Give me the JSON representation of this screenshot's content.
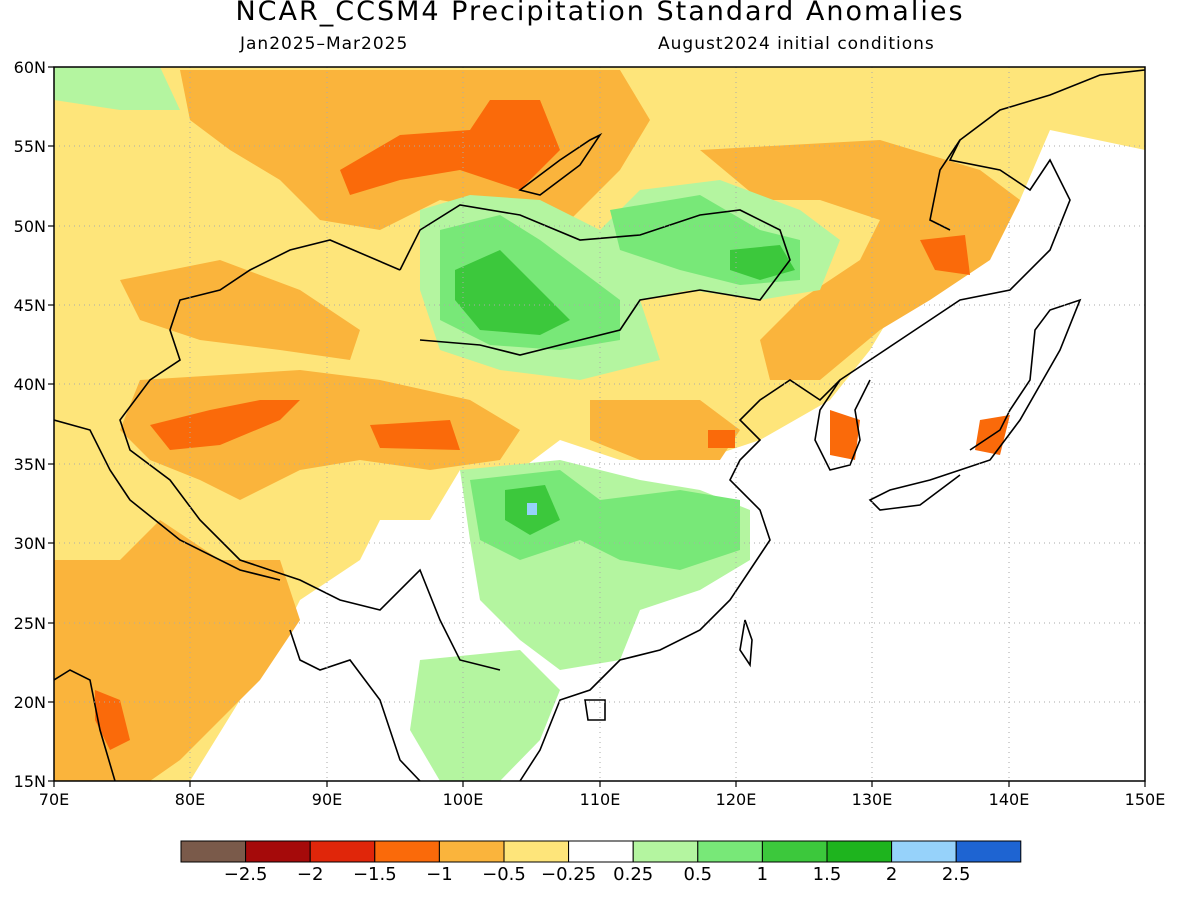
{
  "title": "NCAR_CCSM4 Precipitation Standard Anomalies",
  "period": "Jan2025–Mar2025",
  "initial_conditions": "August2024 initial conditions",
  "lat_labels": [
    "60N",
    "55N",
    "50N",
    "45N",
    "40N",
    "35N",
    "30N",
    "25N",
    "20N",
    "15N"
  ],
  "lon_labels": [
    "70E",
    "80E",
    "90E",
    "100E",
    "110E",
    "120E",
    "130E",
    "140E",
    "150E"
  ],
  "colorbar": {
    "colors": [
      "#7a5a4a",
      "#a50a0a",
      "#e0260a",
      "#fa6a0a",
      "#fab43c",
      "#fee57a",
      "#ffffff",
      "#b4f5a0",
      "#78e878",
      "#3cc83c",
      "#1eb41e",
      "#96d2fa",
      "#1e64d2"
    ],
    "labels": [
      "−2.5",
      "−2",
      "−1.5",
      "−1",
      "−0.5",
      "−0.25",
      "0.25",
      "0.5",
      "1",
      "1.5",
      "2",
      "2.5"
    ]
  }
}
